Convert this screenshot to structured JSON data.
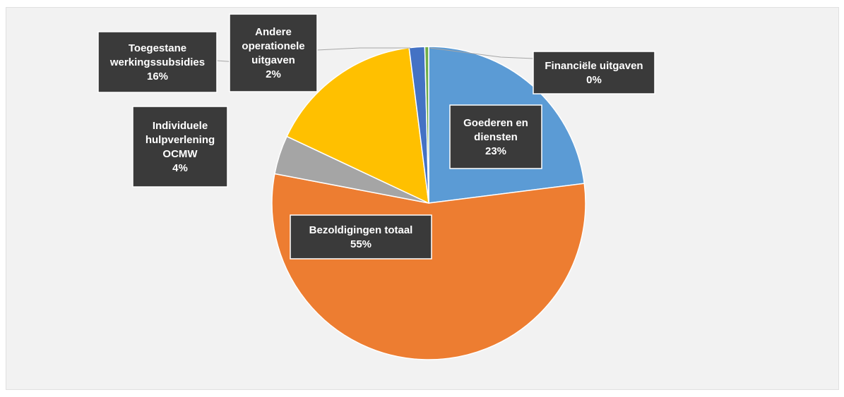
{
  "chart_data": {
    "type": "pie",
    "title": "",
    "start_angle_deg": 0,
    "slices": [
      {
        "label": [
          "Goederen en",
          "diensten"
        ],
        "value": 23,
        "pct_label": "23%",
        "color": "#5b9bd5"
      },
      {
        "label": [
          "Bezoldigingen totaal"
        ],
        "value": 55,
        "pct_label": "55%",
        "color": "#ed7d31"
      },
      {
        "label": [
          "Individuele",
          "hulpverlening",
          "OCMW"
        ],
        "value": 4,
        "pct_label": "4%",
        "color": "#a5a5a5"
      },
      {
        "label": [
          "Toegestane",
          "werkingssubsidies"
        ],
        "value": 16,
        "pct_label": "16%",
        "color": "#ffc000"
      },
      {
        "label": [
          "Andere",
          "operationele",
          "uitgaven"
        ],
        "value": 1.6,
        "pct_label": "2%",
        "color": "#4472c4"
      },
      {
        "label": [
          "Financiële uitgaven"
        ],
        "value": 0.4,
        "pct_label": "0%",
        "color": "#70ad47"
      }
    ],
    "legend": "none",
    "data_labels": "callout boxes"
  }
}
